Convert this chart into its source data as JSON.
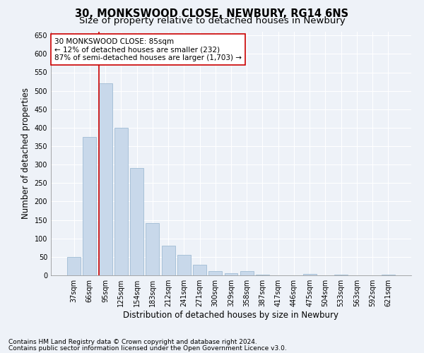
{
  "title": "30, MONKSWOOD CLOSE, NEWBURY, RG14 6NS",
  "subtitle": "Size of property relative to detached houses in Newbury",
  "xlabel": "Distribution of detached houses by size in Newbury",
  "ylabel": "Number of detached properties",
  "categories": [
    "37sqm",
    "66sqm",
    "95sqm",
    "125sqm",
    "154sqm",
    "183sqm",
    "212sqm",
    "241sqm",
    "271sqm",
    "300sqm",
    "329sqm",
    "358sqm",
    "387sqm",
    "417sqm",
    "446sqm",
    "475sqm",
    "504sqm",
    "533sqm",
    "563sqm",
    "592sqm",
    "621sqm"
  ],
  "values": [
    50,
    375,
    520,
    400,
    290,
    142,
    80,
    55,
    28,
    12,
    5,
    12,
    2,
    0,
    0,
    4,
    0,
    2,
    0,
    0,
    2
  ],
  "bar_color": "#c8d8ea",
  "bar_edge_color": "#a0bcd4",
  "vline_color": "#cc0000",
  "annotation_text": "30 MONKSWOOD CLOSE: 85sqm\n← 12% of detached houses are smaller (232)\n87% of semi-detached houses are larger (1,703) →",
  "annotation_box_color": "#ffffff",
  "annotation_box_edge": "#cc0000",
  "ylim": [
    0,
    660
  ],
  "yticks": [
    0,
    50,
    100,
    150,
    200,
    250,
    300,
    350,
    400,
    450,
    500,
    550,
    600,
    650
  ],
  "footer1": "Contains HM Land Registry data © Crown copyright and database right 2024.",
  "footer2": "Contains public sector information licensed under the Open Government Licence v3.0.",
  "bg_color": "#eef2f8",
  "plot_bg_color": "#eef2f8",
  "grid_color": "#ffffff",
  "title_fontsize": 10.5,
  "subtitle_fontsize": 9.5,
  "axis_label_fontsize": 8.5,
  "tick_fontsize": 7,
  "footer_fontsize": 6.5,
  "annotation_fontsize": 7.5
}
